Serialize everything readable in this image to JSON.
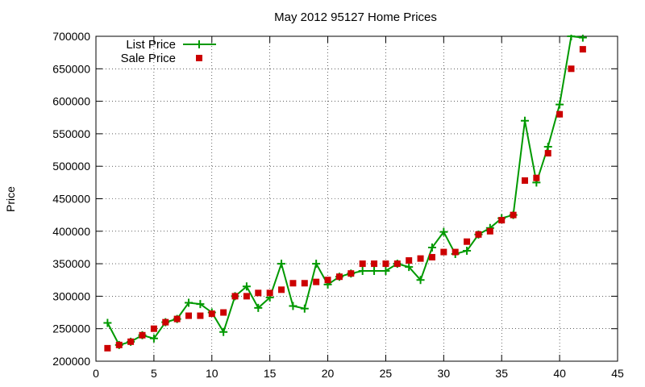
{
  "chart_data": {
    "type": "line",
    "title": "May 2012 95127 Home Prices",
    "xlabel": "",
    "ylabel": "Price",
    "xlim": [
      0,
      45
    ],
    "ylim": [
      200000,
      700000
    ],
    "x_ticks": [
      0,
      5,
      10,
      15,
      20,
      25,
      30,
      35,
      40,
      45
    ],
    "y_ticks": [
      200000,
      250000,
      300000,
      350000,
      400000,
      450000,
      500000,
      550000,
      600000,
      650000,
      700000
    ],
    "grid": true,
    "legend_position": "top-left",
    "series": [
      {
        "name": "List Price",
        "style": "line-with-plus-markers",
        "color": "#009900",
        "x": [
          1,
          2,
          3,
          4,
          5,
          6,
          7,
          8,
          9,
          10,
          11,
          12,
          13,
          14,
          15,
          16,
          17,
          18,
          19,
          20,
          21,
          22,
          23,
          24,
          25,
          26,
          27,
          28,
          29,
          30,
          31,
          32,
          33,
          34,
          35,
          36,
          37,
          38,
          39,
          40,
          41,
          42
        ],
        "values": [
          259000,
          225000,
          230000,
          240000,
          235000,
          260000,
          265000,
          290000,
          288000,
          275000,
          245000,
          300000,
          315000,
          282000,
          298000,
          350000,
          285000,
          281000,
          350000,
          318000,
          330000,
          335000,
          339000,
          339000,
          339000,
          350000,
          345000,
          325000,
          375000,
          399000,
          365000,
          370000,
          395000,
          405000,
          420000,
          425000,
          570000,
          475000,
          530000,
          595000,
          700000,
          698000
        ]
      },
      {
        "name": "Sale Price",
        "style": "square-markers",
        "color": "#cc0000",
        "x": [
          1,
          2,
          3,
          4,
          5,
          6,
          7,
          8,
          9,
          10,
          11,
          12,
          13,
          14,
          15,
          16,
          17,
          18,
          19,
          20,
          21,
          22,
          23,
          24,
          25,
          26,
          27,
          28,
          29,
          30,
          31,
          32,
          33,
          34,
          35,
          36,
          37,
          38,
          39,
          40,
          41,
          42
        ],
        "values": [
          220000,
          225000,
          230000,
          240000,
          250000,
          260000,
          265000,
          270000,
          270000,
          273000,
          275000,
          300000,
          300000,
          305000,
          305000,
          310000,
          320000,
          320000,
          322000,
          325000,
          330000,
          335000,
          350000,
          350000,
          350000,
          350000,
          355000,
          358000,
          360000,
          368000,
          368000,
          384000,
          395000,
          400000,
          417000,
          425000,
          478000,
          482000,
          520000,
          580000,
          650000,
          680000
        ]
      }
    ]
  }
}
